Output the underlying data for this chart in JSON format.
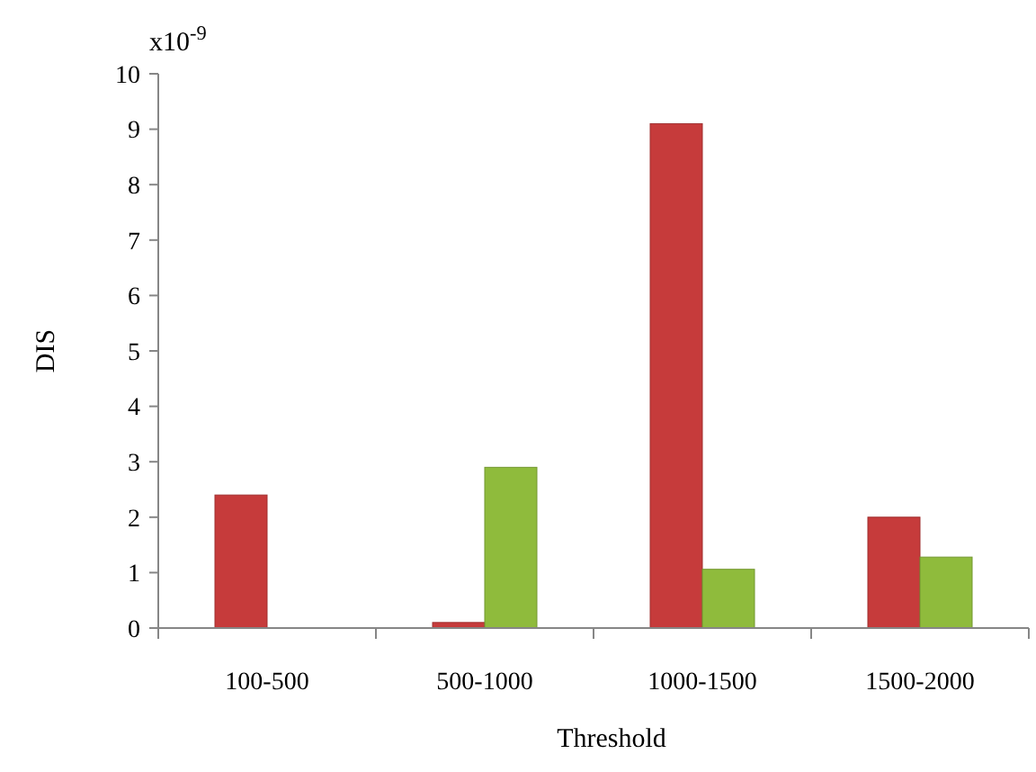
{
  "chart_data": {
    "type": "bar",
    "xlabel": "Threshold",
    "ylabel": "DIS",
    "annotations": [
      "x10$^{-9}$"
    ],
    "categories": [
      "100-500",
      "500-1000",
      "1000-1500",
      "1500-2000"
    ],
    "series": [
      {
        "color": "#c63b3b",
        "values": [
          2.4,
          0.1,
          9.1,
          2.0
        ]
      },
      {
        "color": "#8fbb3c",
        "values": [
          null,
          2.9,
          1.06,
          1.28
        ]
      }
    ],
    "ylim": [
      0,
      10
    ],
    "yticks": [
      0,
      1,
      2,
      3,
      4,
      5,
      6,
      7,
      8,
      9,
      10
    ],
    "grid": false
  }
}
